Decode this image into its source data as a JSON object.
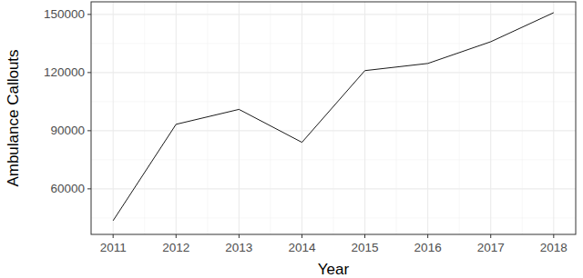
{
  "chart_data": {
    "type": "line",
    "x_label": "Year",
    "y_label": "Ambulance Callouts",
    "x": [
      2011,
      2012,
      2013,
      2014,
      2015,
      2016,
      2017,
      2018
    ],
    "values": [
      43600,
      93300,
      101000,
      84000,
      121000,
      124700,
      135900,
      150900
    ],
    "color": "#000000",
    "xlim": [
      2010.65,
      2018.35
    ],
    "xticks": [
      2011,
      2012,
      2013,
      2014,
      2015,
      2016,
      2017,
      2018
    ],
    "ylim": [
      36500,
      156500
    ],
    "yticks": [
      60000,
      90000,
      120000,
      150000
    ],
    "grid": true
  }
}
